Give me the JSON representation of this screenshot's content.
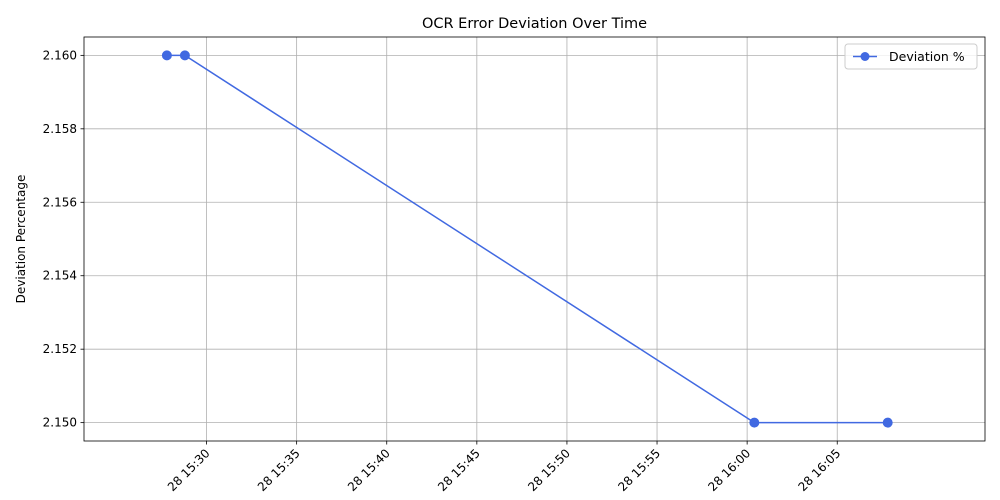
{
  "chart_data": {
    "type": "line",
    "title": "OCR Error Deviation Over Time",
    "xlabel": "",
    "ylabel": "Deviation Percentage",
    "x_tick_labels": [
      "28 15:30",
      "28 15:35",
      "28 15:40",
      "28 15:45",
      "28 15:50",
      "28 15:55",
      "28 16:00",
      "28 16:05"
    ],
    "x_ticks_minutes": [
      930,
      935,
      940,
      945,
      950,
      955,
      960,
      965
    ],
    "xlim_minutes": [
      923.2,
      973.2
    ],
    "ylim": [
      2.1495,
      2.1605
    ],
    "y_ticks": [
      2.15,
      2.152,
      2.154,
      2.156,
      2.158,
      2.16
    ],
    "y_tick_labels": [
      "2.150",
      "2.152",
      "2.154",
      "2.156",
      "2.158",
      "2.160"
    ],
    "grid": true,
    "legend_position": "top-right",
    "series": [
      {
        "name": "Deviation %",
        "color": "#4169e1",
        "marker": "circle",
        "x_minutes": [
          927.8,
          928.8,
          960.4,
          967.8
        ],
        "values": [
          2.16,
          2.16,
          2.15,
          2.15
        ]
      }
    ]
  }
}
